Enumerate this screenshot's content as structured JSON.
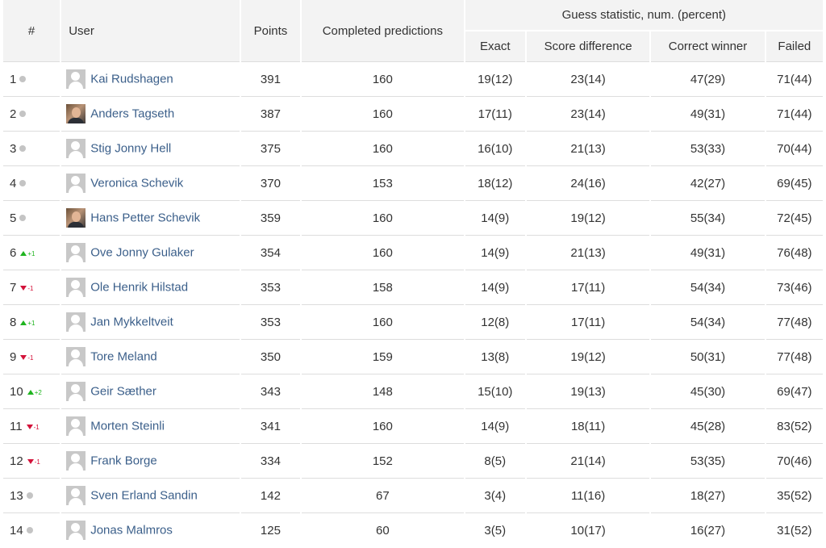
{
  "colors": {
    "header_bg": "#f3f3f3",
    "link": "#3b5f8a",
    "up": "#1fb41f",
    "down": "#d3123a",
    "neutral_dot": "#c4c4c4",
    "row_border": "#dddddd"
  },
  "header": {
    "rank": "#",
    "user": "User",
    "points": "Points",
    "completed": "Completed predictions",
    "guess_group": "Guess statistic, num. (percent)",
    "exact": "Exact",
    "score_difference": "Score difference",
    "correct_winner": "Correct winner",
    "failed": "Failed"
  },
  "rows": [
    {
      "rank": "1",
      "trend": "same",
      "delta": "",
      "avatar": "default",
      "name": "Kai Rudshagen",
      "points": "391",
      "completed": "160",
      "exact": "19(12)",
      "score_difference": "23(14)",
      "correct_winner": "47(29)",
      "failed": "71(44)"
    },
    {
      "rank": "2",
      "trend": "same",
      "delta": "",
      "avatar": "photo",
      "name": "Anders Tagseth",
      "points": "387",
      "completed": "160",
      "exact": "17(11)",
      "score_difference": "23(14)",
      "correct_winner": "49(31)",
      "failed": "71(44)"
    },
    {
      "rank": "3",
      "trend": "same",
      "delta": "",
      "avatar": "default",
      "name": "Stig Jonny Hell",
      "points": "375",
      "completed": "160",
      "exact": "16(10)",
      "score_difference": "21(13)",
      "correct_winner": "53(33)",
      "failed": "70(44)"
    },
    {
      "rank": "4",
      "trend": "same",
      "delta": "",
      "avatar": "default",
      "name": "Veronica Schevik",
      "points": "370",
      "completed": "153",
      "exact": "18(12)",
      "score_difference": "24(16)",
      "correct_winner": "42(27)",
      "failed": "69(45)"
    },
    {
      "rank": "5",
      "trend": "same",
      "delta": "",
      "avatar": "photo",
      "name": "Hans Petter Schevik",
      "points": "359",
      "completed": "160",
      "exact": "14(9)",
      "score_difference": "19(12)",
      "correct_winner": "55(34)",
      "failed": "72(45)"
    },
    {
      "rank": "6",
      "trend": "up",
      "delta": "+1",
      "avatar": "default",
      "name": "Ove Jonny Gulaker",
      "points": "354",
      "completed": "160",
      "exact": "14(9)",
      "score_difference": "21(13)",
      "correct_winner": "49(31)",
      "failed": "76(48)"
    },
    {
      "rank": "7",
      "trend": "down",
      "delta": "-1",
      "avatar": "default",
      "name": "Ole Henrik Hilstad",
      "points": "353",
      "completed": "158",
      "exact": "14(9)",
      "score_difference": "17(11)",
      "correct_winner": "54(34)",
      "failed": "73(46)"
    },
    {
      "rank": "8",
      "trend": "up",
      "delta": "+1",
      "avatar": "default",
      "name": "Jan Mykkeltveit",
      "points": "353",
      "completed": "160",
      "exact": "12(8)",
      "score_difference": "17(11)",
      "correct_winner": "54(34)",
      "failed": "77(48)"
    },
    {
      "rank": "9",
      "trend": "down",
      "delta": "-1",
      "avatar": "default",
      "name": "Tore Meland",
      "points": "350",
      "completed": "159",
      "exact": "13(8)",
      "score_difference": "19(12)",
      "correct_winner": "50(31)",
      "failed": "77(48)"
    },
    {
      "rank": "10",
      "trend": "up",
      "delta": "+2",
      "avatar": "default",
      "name": "Geir Sæther",
      "points": "343",
      "completed": "148",
      "exact": "15(10)",
      "score_difference": "19(13)",
      "correct_winner": "45(30)",
      "failed": "69(47)"
    },
    {
      "rank": "11",
      "trend": "down",
      "delta": "-1",
      "avatar": "default",
      "name": "Morten Steinli",
      "points": "341",
      "completed": "160",
      "exact": "14(9)",
      "score_difference": "18(11)",
      "correct_winner": "45(28)",
      "failed": "83(52)"
    },
    {
      "rank": "12",
      "trend": "down",
      "delta": "-1",
      "avatar": "default",
      "name": "Frank Borge",
      "points": "334",
      "completed": "152",
      "exact": "8(5)",
      "score_difference": "21(14)",
      "correct_winner": "53(35)",
      "failed": "70(46)"
    },
    {
      "rank": "13",
      "trend": "same",
      "delta": "",
      "avatar": "default",
      "name": "Sven Erland Sandin",
      "points": "142",
      "completed": "67",
      "exact": "3(4)",
      "score_difference": "11(16)",
      "correct_winner": "18(27)",
      "failed": "35(52)"
    },
    {
      "rank": "14",
      "trend": "same",
      "delta": "",
      "avatar": "default",
      "name": "Jonas Malmros",
      "points": "125",
      "completed": "60",
      "exact": "3(5)",
      "score_difference": "10(17)",
      "correct_winner": "16(27)",
      "failed": "31(52)"
    }
  ]
}
